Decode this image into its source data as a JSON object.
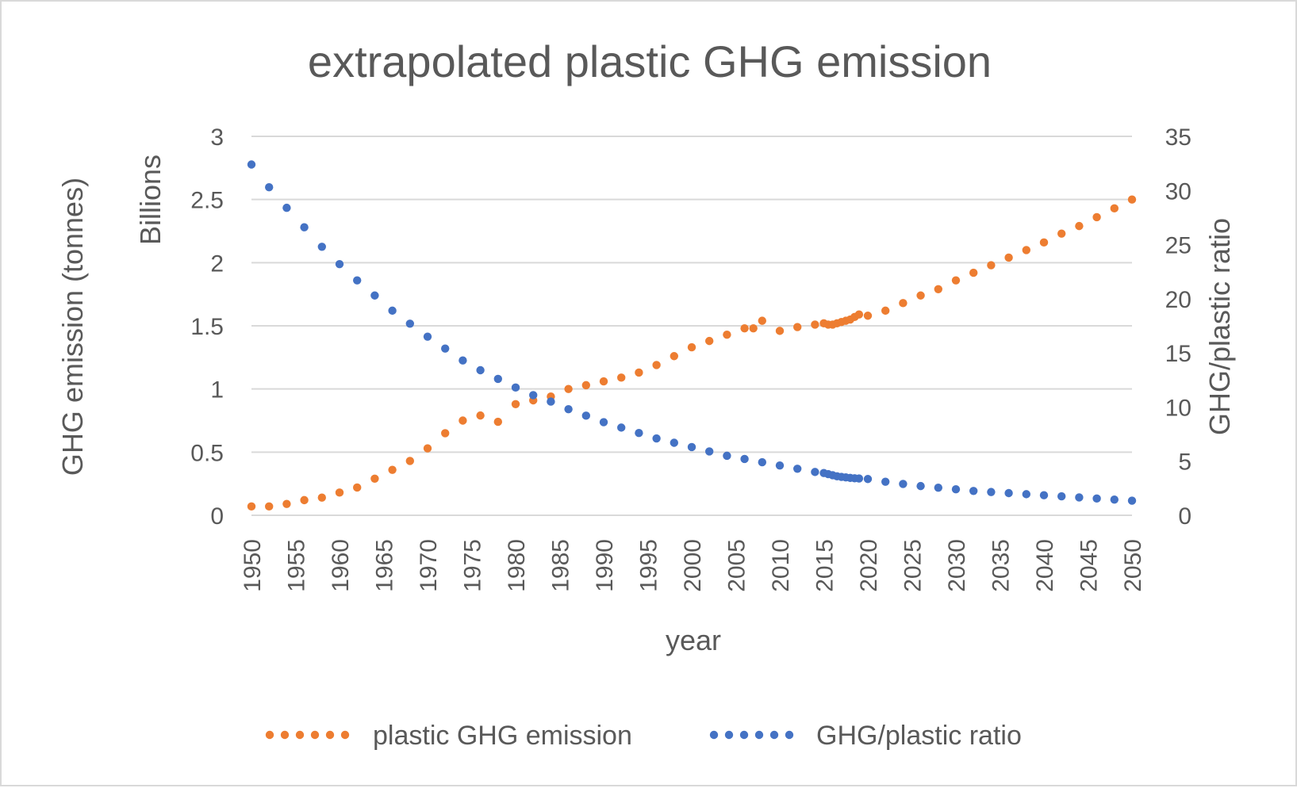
{
  "chart_data": {
    "type": "scatter",
    "title": "extrapolated plastic GHG emission",
    "xlabel": "year",
    "ylabel_left": "GHG emission (tonnes)",
    "ylabel_left_units": "Billions",
    "ylabel_right": "GHG/plastic ratio",
    "xlim": [
      1950,
      2050
    ],
    "ylim_left": [
      0,
      3
    ],
    "ylim_right": [
      0,
      35
    ],
    "x_ticks": [
      "1950",
      "1955",
      "1960",
      "1965",
      "1970",
      "1975",
      "1980",
      "1985",
      "1990",
      "1995",
      "2000",
      "2005",
      "2010",
      "2015",
      "2020",
      "2025",
      "2030",
      "2035",
      "2040",
      "2045",
      "2050"
    ],
    "y_left_ticks": [
      "0",
      "0.5",
      "1",
      "1.5",
      "2",
      "2.5",
      "3"
    ],
    "y_right_ticks": [
      "0",
      "5",
      "10",
      "15",
      "20",
      "25",
      "30",
      "35"
    ],
    "grid": "horizontal",
    "legend_position": "bottom",
    "series": [
      {
        "name": "plastic GHG emission",
        "axis": "left",
        "color": "#ED7D31",
        "x": [
          1950,
          1952,
          1954,
          1956,
          1958,
          1960,
          1962,
          1964,
          1966,
          1968,
          1970,
          1972,
          1974,
          1976,
          1978,
          1980,
          1982,
          1984,
          1986,
          1988,
          1990,
          1992,
          1994,
          1996,
          1998,
          2000,
          2002,
          2004,
          2006,
          2007,
          2008,
          2010,
          2012,
          2014,
          2015,
          2015.5,
          2016,
          2016.5,
          2017,
          2017.5,
          2018,
          2018.5,
          2019,
          2020,
          2022,
          2024,
          2026,
          2028,
          2030,
          2032,
          2034,
          2036,
          2038,
          2040,
          2042,
          2044,
          2046,
          2048,
          2050
        ],
        "y": [
          0.07,
          0.07,
          0.09,
          0.12,
          0.14,
          0.18,
          0.22,
          0.29,
          0.36,
          0.43,
          0.53,
          0.65,
          0.75,
          0.79,
          0.74,
          0.88,
          0.91,
          0.94,
          1.0,
          1.03,
          1.06,
          1.09,
          1.13,
          1.19,
          1.26,
          1.33,
          1.38,
          1.43,
          1.48,
          1.48,
          1.54,
          1.46,
          1.49,
          1.51,
          1.52,
          1.51,
          1.51,
          1.52,
          1.53,
          1.54,
          1.55,
          1.57,
          1.59,
          1.58,
          1.62,
          1.68,
          1.74,
          1.79,
          1.86,
          1.92,
          1.98,
          2.04,
          2.1,
          2.16,
          2.23,
          2.29,
          2.36,
          2.43,
          2.5
        ]
      },
      {
        "name": "GHG/plastic ratio",
        "axis": "right",
        "color": "#4472C4",
        "x": [
          1950,
          1952,
          1954,
          1956,
          1958,
          1960,
          1962,
          1964,
          1966,
          1968,
          1970,
          1972,
          1974,
          1976,
          1978,
          1980,
          1982,
          1984,
          1986,
          1988,
          1990,
          1992,
          1994,
          1996,
          1998,
          2000,
          2002,
          2004,
          2006,
          2008,
          2010,
          2012,
          2014,
          2015,
          2015.5,
          2016,
          2016.5,
          2017,
          2017.5,
          2018,
          2018.5,
          2019,
          2020,
          2022,
          2024,
          2026,
          2028,
          2030,
          2032,
          2034,
          2036,
          2038,
          2040,
          2042,
          2044,
          2046,
          2048,
          2050
        ],
        "y": [
          32.4,
          30.3,
          28.4,
          26.6,
          24.8,
          23.2,
          21.7,
          20.3,
          18.9,
          17.7,
          16.5,
          15.4,
          14.3,
          13.4,
          12.6,
          11.8,
          11.1,
          10.5,
          9.8,
          9.2,
          8.6,
          8.1,
          7.6,
          7.1,
          6.7,
          6.3,
          5.9,
          5.5,
          5.2,
          4.9,
          4.6,
          4.3,
          4.0,
          3.9,
          3.8,
          3.7,
          3.6,
          3.55,
          3.5,
          3.45,
          3.42,
          3.4,
          3.35,
          3.1,
          2.9,
          2.7,
          2.55,
          2.4,
          2.25,
          2.15,
          2.05,
          1.95,
          1.85,
          1.75,
          1.65,
          1.55,
          1.45,
          1.35
        ]
      }
    ]
  }
}
